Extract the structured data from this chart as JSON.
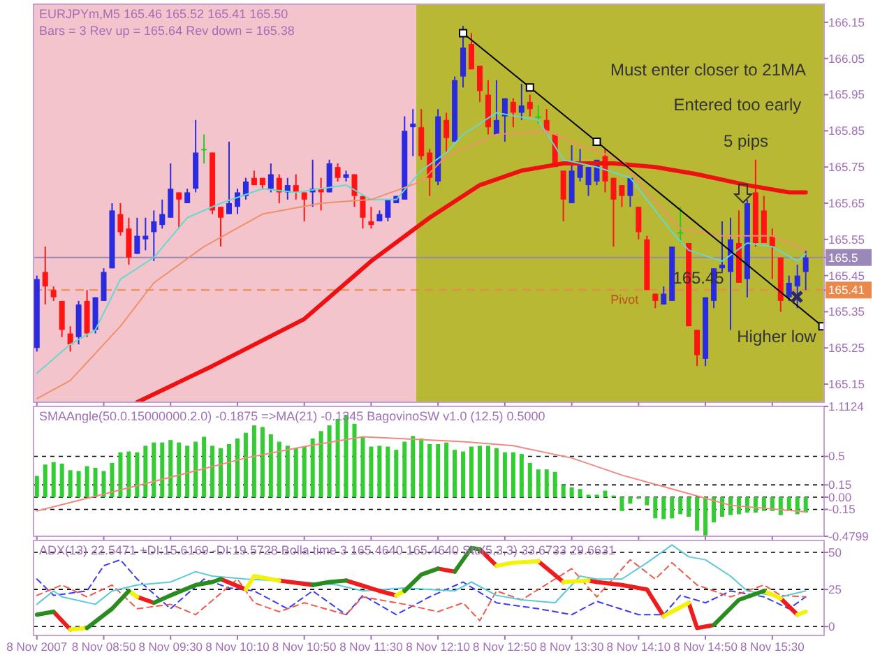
{
  "chart_data": [
    {
      "type": "candlestick",
      "title": "EURJPYm,M5  165.46 165.52 165.41 165.50",
      "subtitle": "Bars = 3 Rev up =  165.64 Rev down = 165.38",
      "xlim": [
        "2007-11-08T08:08",
        "2007-11-08T16:01"
      ],
      "ylim": [
        165.1,
        166.2
      ],
      "yticks": [
        165.15,
        165.25,
        165.35,
        165.41,
        165.45,
        165.5,
        165.55,
        165.65,
        165.75,
        165.85,
        165.95,
        166.05,
        166.15
      ],
      "tick_labels": "y",
      "grid": false,
      "xticks": [
        "2007-11-08T08:10",
        "2007-11-08T08:50",
        "2007-11-08T09:30",
        "2007-11-08T10:10",
        "2007-11-08T10:50",
        "2007-11-08T11:30",
        "2007-11-08T12:10",
        "2007-11-08T12:50",
        "2007-11-08T13:30",
        "2007-11-08T14:10",
        "2007-11-08T14:50",
        "2007-11-08T15:30"
      ],
      "bands": [
        {
          "axis": "x",
          "from": "2007-11-08T08:08",
          "to": "2007-11-08T11:57",
          "color": "#f4c4cc"
        },
        {
          "axis": "x",
          "from": "2007-11-08T11:57",
          "to": "2007-11-08T16:01",
          "color": "#b8b834"
        }
      ],
      "ref_lines": [
        {
          "axis": "y",
          "value": 165.5,
          "color": "#9a88b8",
          "line_style": "solid"
        },
        {
          "axis": "y",
          "value": 165.41,
          "label": "Pivot",
          "color": "#e8884a",
          "line_style": "dashed"
        }
      ],
      "annotations": [
        "Must enter closer to 21MA",
        "Entered too early",
        "5 pips",
        "165.45",
        "Higher low"
      ],
      "series": [
        {
          "x": [
            "2007-11-08T08:10",
            "2007-11-08T08:15",
            "2007-11-08T08:20",
            "2007-11-08T08:25",
            "2007-11-08T08:30",
            "2007-11-08T08:35",
            "2007-11-08T08:40",
            "2007-11-08T08:45",
            "2007-11-08T08:50",
            "2007-11-08T08:55",
            "2007-11-08T09:00",
            "2007-11-08T09:05",
            "2007-11-08T09:10",
            "2007-11-08T09:15",
            "2007-11-08T09:20",
            "2007-11-08T09:25",
            "2007-11-08T09:30",
            "2007-11-08T09:35",
            "2007-11-08T09:40",
            "2007-11-08T09:45",
            "2007-11-08T09:50",
            "2007-11-08T09:55",
            "2007-11-08T10:00",
            "2007-11-08T10:05",
            "2007-11-08T10:10",
            "2007-11-08T10:15",
            "2007-11-08T10:20",
            "2007-11-08T10:25",
            "2007-11-08T10:30",
            "2007-11-08T10:35",
            "2007-11-08T10:40",
            "2007-11-08T10:45",
            "2007-11-08T10:50",
            "2007-11-08T10:55",
            "2007-11-08T11:00",
            "2007-11-08T11:05",
            "2007-11-08T11:10",
            "2007-11-08T11:15",
            "2007-11-08T11:20",
            "2007-11-08T11:25",
            "2007-11-08T11:30",
            "2007-11-08T11:35",
            "2007-11-08T11:40",
            "2007-11-08T11:45",
            "2007-11-08T11:50",
            "2007-11-08T11:55",
            "2007-11-08T12:00",
            "2007-11-08T12:05",
            "2007-11-08T12:10",
            "2007-11-08T12:15",
            "2007-11-08T12:20",
            "2007-11-08T12:25",
            "2007-11-08T12:30",
            "2007-11-08T12:35",
            "2007-11-08T12:40",
            "2007-11-08T12:45",
            "2007-11-08T12:50",
            "2007-11-08T12:55",
            "2007-11-08T13:00",
            "2007-11-08T13:05",
            "2007-11-08T13:10",
            "2007-11-08T13:15",
            "2007-11-08T13:20",
            "2007-11-08T13:25",
            "2007-11-08T13:30",
            "2007-11-08T13:35",
            "2007-11-08T13:40",
            "2007-11-08T13:45",
            "2007-11-08T13:50",
            "2007-11-08T13:55",
            "2007-11-08T14:00",
            "2007-11-08T14:05",
            "2007-11-08T14:10",
            "2007-11-08T14:15",
            "2007-11-08T14:20",
            "2007-11-08T14:25",
            "2007-11-08T14:30",
            "2007-11-08T14:35",
            "2007-11-08T14:40",
            "2007-11-08T14:45",
            "2007-11-08T14:50",
            "2007-11-08T14:55",
            "2007-11-08T15:00",
            "2007-11-08T15:05",
            "2007-11-08T15:10",
            "2007-11-08T15:15",
            "2007-11-08T15:20",
            "2007-11-08T15:25",
            "2007-11-08T15:30",
            "2007-11-08T15:35",
            "2007-11-08T15:40",
            "2007-11-08T15:45",
            "2007-11-08T15:50"
          ],
          "ohlc": [
            [
              165.25,
              165.45,
              165.24,
              165.44
            ],
            [
              165.46,
              165.53,
              165.37,
              165.42
            ],
            [
              165.41,
              165.42,
              165.38,
              165.39
            ],
            [
              165.38,
              165.38,
              165.28,
              165.3
            ],
            [
              165.29,
              165.31,
              165.24,
              165.26
            ],
            [
              165.28,
              165.38,
              165.26,
              165.37
            ],
            [
              165.38,
              165.41,
              165.28,
              165.29
            ],
            [
              165.3,
              165.39,
              165.29,
              165.39
            ],
            [
              165.38,
              165.47,
              165.38,
              165.46
            ],
            [
              165.47,
              165.65,
              165.47,
              165.63
            ],
            [
              165.62,
              165.65,
              165.56,
              165.57
            ],
            [
              165.58,
              165.61,
              165.48,
              165.5
            ],
            [
              165.51,
              165.61,
              165.51,
              165.56
            ],
            [
              165.55,
              165.61,
              165.52,
              165.56
            ],
            [
              165.57,
              165.63,
              165.49,
              165.6
            ],
            [
              165.59,
              165.66,
              165.58,
              165.62
            ],
            [
              165.61,
              165.76,
              165.61,
              165.69
            ],
            [
              165.68,
              165.68,
              165.58,
              165.66
            ],
            [
              165.65,
              165.69,
              165.65,
              165.68
            ],
            [
              165.69,
              165.88,
              165.68,
              165.79
            ],
            [
              165.8,
              165.84,
              165.76,
              165.8
            ],
            [
              165.79,
              165.79,
              165.62,
              165.63
            ],
            [
              165.64,
              165.64,
              165.53,
              165.61
            ],
            [
              165.62,
              165.82,
              165.62,
              165.65
            ],
            [
              165.64,
              165.69,
              165.62,
              165.68
            ],
            [
              165.67,
              165.72,
              165.66,
              165.71
            ],
            [
              165.72,
              165.74,
              165.7,
              165.7
            ],
            [
              165.72,
              165.72,
              165.69,
              165.7
            ],
            [
              165.69,
              165.76,
              165.68,
              165.73
            ],
            [
              165.72,
              165.73,
              165.65,
              165.68
            ],
            [
              165.68,
              165.72,
              165.66,
              165.7
            ],
            [
              165.7,
              165.73,
              165.66,
              165.68
            ],
            [
              165.68,
              165.68,
              165.6,
              165.66
            ],
            [
              165.68,
              165.77,
              165.64,
              165.69
            ],
            [
              165.69,
              165.72,
              165.63,
              165.68
            ],
            [
              165.68,
              165.77,
              165.68,
              165.76
            ],
            [
              165.75,
              165.76,
              165.71,
              165.72
            ],
            [
              165.72,
              165.74,
              165.71,
              165.73
            ],
            [
              165.73,
              165.73,
              165.64,
              165.67
            ],
            [
              165.67,
              165.67,
              165.58,
              165.61
            ],
            [
              165.6,
              165.64,
              165.58,
              165.59
            ],
            [
              165.6,
              165.63,
              165.6,
              165.62
            ],
            [
              165.61,
              165.66,
              165.6,
              165.66
            ],
            [
              165.65,
              165.67,
              165.65,
              165.67
            ],
            [
              165.66,
              165.89,
              165.66,
              165.85
            ],
            [
              165.86,
              165.91,
              165.78,
              165.87
            ],
            [
              165.86,
              165.91,
              165.77,
              165.78
            ],
            [
              165.79,
              165.8,
              165.67,
              165.72
            ],
            [
              165.71,
              165.91,
              165.7,
              165.89
            ],
            [
              165.88,
              165.9,
              165.79,
              165.83
            ],
            [
              165.82,
              166.0,
              165.82,
              165.99
            ],
            [
              166.0,
              166.14,
              165.97,
              166.08
            ],
            [
              166.09,
              166.12,
              166.02,
              166.02
            ],
            [
              166.03,
              166.03,
              165.93,
              165.96
            ],
            [
              165.95,
              165.99,
              165.84,
              165.86
            ],
            [
              165.84,
              165.99,
              165.84,
              165.88
            ],
            [
              165.89,
              165.94,
              165.82,
              165.94
            ],
            [
              165.93,
              165.94,
              165.86,
              165.9
            ],
            [
              165.9,
              165.98,
              165.88,
              165.92
            ],
            [
              165.93,
              165.95,
              165.89,
              165.91
            ],
            [
              165.89,
              165.92,
              165.87,
              165.89
            ],
            [
              165.88,
              165.91,
              165.84,
              165.85
            ],
            [
              165.84,
              165.84,
              165.75,
              165.75
            ],
            [
              165.74,
              165.74,
              165.6,
              165.66
            ],
            [
              165.65,
              165.81,
              165.65,
              165.74
            ],
            [
              165.72,
              165.8,
              165.71,
              165.76
            ],
            [
              165.7,
              165.75,
              165.67,
              165.75
            ],
            [
              165.71,
              165.77,
              165.7,
              165.77
            ],
            [
              165.78,
              165.8,
              165.68,
              165.71
            ],
            [
              165.72,
              165.72,
              165.53,
              165.66
            ],
            [
              165.7,
              165.7,
              165.64,
              165.67
            ],
            [
              165.67,
              165.72,
              165.64,
              165.72
            ],
            [
              165.64,
              165.64,
              165.55,
              165.57
            ],
            [
              165.55,
              165.56,
              165.41,
              165.41
            ],
            [
              165.4,
              165.4,
              165.36,
              165.38
            ],
            [
              165.37,
              165.42,
              165.37,
              165.4
            ],
            [
              165.38,
              165.53,
              165.38,
              165.53
            ],
            [
              165.57,
              165.64,
              165.54,
              165.57
            ],
            [
              165.54,
              165.54,
              165.31,
              165.31
            ],
            [
              165.3,
              165.3,
              165.2,
              165.23
            ],
            [
              165.22,
              165.39,
              165.2,
              165.39
            ],
            [
              165.38,
              165.47,
              165.36,
              165.47
            ],
            [
              165.47,
              165.6,
              165.46,
              165.48
            ],
            [
              165.46,
              165.61,
              165.3,
              165.55
            ],
            [
              165.54,
              165.63,
              165.43,
              165.43
            ],
            [
              165.44,
              165.66,
              165.39,
              165.65
            ],
            [
              165.68,
              165.77,
              165.53,
              165.54
            ],
            [
              165.63,
              165.67,
              165.54,
              165.54
            ],
            [
              165.56,
              165.58,
              165.44,
              165.53
            ],
            [
              165.5,
              165.5,
              165.35,
              165.38
            ],
            [
              165.39,
              165.45,
              165.38,
              165.43
            ],
            [
              165.42,
              165.48,
              165.36,
              165.45
            ],
            [
              165.46,
              165.52,
              165.41,
              165.5
            ]
          ],
          "colors": [
            "#2a2ae0",
            "#ff1414",
            "#ff1414",
            "#ff1414",
            "#ff1414",
            "#2a2ae0",
            "#ff1414",
            "#2a2ae0",
            "#2a2ae0",
            "#2a2ae0",
            "#ff1414",
            "#ff1414",
            "#2a2ae0",
            "#2a2ae0",
            "#2a2ae0",
            "#2a2ae0",
            "#2a2ae0",
            "#ff1414",
            "#2a2ae0",
            "#2a2ae0",
            "#22cc22",
            "#ff1414",
            "#ff1414",
            "#2a2ae0",
            "#2a2ae0",
            "#2a2ae0",
            "#ff1414",
            "#ff1414",
            "#2a2ae0",
            "#ff1414",
            "#2a2ae0",
            "#ff1414",
            "#ff1414",
            "#2a2ae0",
            "#ff1414",
            "#2a2ae0",
            "#ff1414",
            "#2a2ae0",
            "#ff1414",
            "#ff1414",
            "#ff1414",
            "#2a2ae0",
            "#2a2ae0",
            "#2a2ae0",
            "#2a2ae0",
            "#2a2ae0",
            "#ff1414",
            "#ff1414",
            "#2a2ae0",
            "#ff1414",
            "#2a2ae0",
            "#2a2ae0",
            "#ff1414",
            "#ff1414",
            "#ff1414",
            "#2a2ae0",
            "#2a2ae0",
            "#ff1414",
            "#2a2ae0",
            "#ff1414",
            "#22cc22",
            "#ff1414",
            "#ff1414",
            "#ff1414",
            "#2a2ae0",
            "#2a2ae0",
            "#2a2ae0",
            "#2a2ae0",
            "#ff1414",
            "#ff1414",
            "#ff1414",
            "#2a2ae0",
            "#ff1414",
            "#ff1414",
            "#ff1414",
            "#2a2ae0",
            "#2a2ae0",
            "#22cc22",
            "#ff1414",
            "#ff1414",
            "#2a2ae0",
            "#2a2ae0",
            "#2a2ae0",
            "#2a2ae0",
            "#ff1414",
            "#2a2ae0",
            "#ff1414",
            "#ff1414",
            "#ff1414",
            "#ff1414",
            "#2a2ae0",
            "#2a2ae0",
            "#2a2ae0"
          ]
        },
        {
          "type": "line",
          "color": "#ee1111",
          "x": [
            "2007-11-08T09:10",
            "2007-11-08T09:55",
            "2007-11-08T10:50",
            "2007-11-08T11:30",
            "2007-11-08T12:05",
            "2007-11-08T12:35",
            "2007-11-08T13:00",
            "2007-11-08T13:25",
            "2007-11-08T13:55",
            "2007-11-08T14:20",
            "2007-11-08T14:45",
            "2007-11-08T15:15",
            "2007-11-08T15:40",
            "2007-11-08T15:50"
          ],
          "values": [
            165.1,
            165.2,
            165.33,
            165.49,
            165.61,
            165.7,
            165.74,
            165.76,
            165.76,
            165.75,
            165.73,
            165.7,
            165.68,
            165.68
          ]
        },
        {
          "type": "line",
          "color": "#66d8d0",
          "x": [
            "2007-11-08T08:10",
            "2007-11-08T08:30",
            "2007-11-08T08:45",
            "2007-11-08T09:00",
            "2007-11-08T09:20",
            "2007-11-08T09:40",
            "2007-11-08T10:00",
            "2007-11-08T10:25",
            "2007-11-08T10:45",
            "2007-11-08T11:15",
            "2007-11-08T11:30",
            "2007-11-08T11:45",
            "2007-11-08T12:00",
            "2007-11-08T12:15",
            "2007-11-08T12:25",
            "2007-11-08T12:45",
            "2007-11-08T13:10",
            "2007-11-08T13:25",
            "2007-11-08T13:45",
            "2007-11-08T14:05",
            "2007-11-08T14:20",
            "2007-11-08T14:30",
            "2007-11-08T14:40",
            "2007-11-08T15:00",
            "2007-11-08T15:15",
            "2007-11-08T15:30",
            "2007-11-08T15:45",
            "2007-11-08T15:50"
          ],
          "values": [
            165.18,
            165.26,
            165.3,
            165.44,
            165.5,
            165.61,
            165.65,
            165.69,
            165.68,
            165.7,
            165.66,
            165.66,
            165.74,
            165.79,
            165.84,
            165.9,
            165.88,
            165.77,
            165.75,
            165.72,
            165.63,
            165.57,
            165.52,
            165.49,
            165.54,
            165.53,
            165.49,
            165.51
          ]
        },
        {
          "type": "line",
          "color": "#f0906a",
          "x": [
            "2007-11-08T08:10",
            "2007-11-08T08:30",
            "2007-11-08T09:00",
            "2007-11-08T09:20",
            "2007-11-08T09:50",
            "2007-11-08T10:25",
            "2007-11-08T11:00",
            "2007-11-08T11:30",
            "2007-11-08T12:00",
            "2007-11-08T12:15",
            "2007-11-08T12:45",
            "2007-11-08T13:15",
            "2007-11-08T13:35",
            "2007-11-08T14:00",
            "2007-11-08T14:15",
            "2007-11-08T14:35",
            "2007-11-08T15:00",
            "2007-11-08T15:30",
            "2007-11-08T15:50"
          ],
          "values": [
            165.11,
            165.16,
            165.31,
            165.43,
            165.53,
            165.62,
            165.65,
            165.66,
            165.71,
            165.78,
            165.84,
            165.85,
            165.81,
            165.77,
            165.68,
            165.58,
            165.56,
            165.56,
            165.52
          ]
        },
        {
          "type": "line",
          "color": "#000000",
          "marker": "square",
          "x": [
            "2007-11-08T12:25",
            "2007-11-08T13:05",
            "2007-11-08T13:45",
            "2007-11-08T16:00"
          ],
          "values": [
            166.12,
            165.97,
            165.82,
            165.31
          ]
        }
      ]
    },
    {
      "type": "bar",
      "title": "SMAAngle(50.0.15000000.2.0) -0.1875   =>MA(21) -0.1345   BagovinoSW v1.0 (12.5) 0.5000",
      "xlim": [
        "2007-11-08T08:08",
        "2007-11-08T16:01"
      ],
      "ylim": [
        -0.4799,
        1.1124
      ],
      "yticks": [
        1.1124,
        0.5,
        0.15,
        {
          "value": 0,
          "label": "0.00"
        },
        -0.15,
        -0.4799
      ],
      "tick_labels": "y",
      "grid": "y",
      "xticks": [
        "2007-11-08T08:10",
        "2007-11-08T08:50",
        "2007-11-08T09:30",
        "2007-11-08T10:10",
        "2007-11-08T10:50",
        "2007-11-08T11:30",
        "2007-11-08T12:10",
        "2007-11-08T12:50",
        "2007-11-08T13:30",
        "2007-11-08T14:10",
        "2007-11-08T14:50",
        "2007-11-08T15:30"
      ],
      "series": [
        {
          "color": "#33cc33",
          "x": [
            "2007-11-08T08:10",
            "2007-11-08T08:15",
            "2007-11-08T08:20",
            "2007-11-08T08:25",
            "2007-11-08T08:30",
            "2007-11-08T08:35",
            "2007-11-08T08:40",
            "2007-11-08T08:45",
            "2007-11-08T08:50",
            "2007-11-08T08:55",
            "2007-11-08T09:00",
            "2007-11-08T09:05",
            "2007-11-08T09:10",
            "2007-11-08T09:15",
            "2007-11-08T09:20",
            "2007-11-08T09:25",
            "2007-11-08T09:30",
            "2007-11-08T09:35",
            "2007-11-08T09:40",
            "2007-11-08T09:45",
            "2007-11-08T09:50",
            "2007-11-08T09:55",
            "2007-11-08T10:00",
            "2007-11-08T10:05",
            "2007-11-08T10:10",
            "2007-11-08T10:15",
            "2007-11-08T10:20",
            "2007-11-08T10:25",
            "2007-11-08T10:30",
            "2007-11-08T10:35",
            "2007-11-08T10:40",
            "2007-11-08T10:45",
            "2007-11-08T10:50",
            "2007-11-08T10:55",
            "2007-11-08T11:00",
            "2007-11-08T11:05",
            "2007-11-08T11:10",
            "2007-11-08T11:15",
            "2007-11-08T11:20",
            "2007-11-08T11:25",
            "2007-11-08T11:30",
            "2007-11-08T11:35",
            "2007-11-08T11:40",
            "2007-11-08T11:45",
            "2007-11-08T11:50",
            "2007-11-08T11:55",
            "2007-11-08T12:00",
            "2007-11-08T12:05",
            "2007-11-08T12:10",
            "2007-11-08T12:15",
            "2007-11-08T12:20",
            "2007-11-08T12:25",
            "2007-11-08T12:30",
            "2007-11-08T12:35",
            "2007-11-08T12:40",
            "2007-11-08T12:45",
            "2007-11-08T12:50",
            "2007-11-08T12:55",
            "2007-11-08T13:00",
            "2007-11-08T13:05",
            "2007-11-08T13:10",
            "2007-11-08T13:15",
            "2007-11-08T13:20",
            "2007-11-08T13:25",
            "2007-11-08T13:30",
            "2007-11-08T13:35",
            "2007-11-08T13:40",
            "2007-11-08T13:45",
            "2007-11-08T13:50",
            "2007-11-08T13:55",
            "2007-11-08T14:00",
            "2007-11-08T14:05",
            "2007-11-08T14:10",
            "2007-11-08T14:15",
            "2007-11-08T14:20",
            "2007-11-08T14:25",
            "2007-11-08T14:30",
            "2007-11-08T14:35",
            "2007-11-08T14:40",
            "2007-11-08T14:45",
            "2007-11-08T14:50",
            "2007-11-08T14:55",
            "2007-11-08T15:00",
            "2007-11-08T15:05",
            "2007-11-08T15:10",
            "2007-11-08T15:15",
            "2007-11-08T15:20",
            "2007-11-08T15:25",
            "2007-11-08T15:30",
            "2007-11-08T15:35",
            "2007-11-08T15:40",
            "2007-11-08T15:45",
            "2007-11-08T15:50"
          ],
          "values": [
            0.26,
            0.4,
            0.43,
            0.41,
            0.33,
            0.32,
            0.38,
            0.36,
            0.32,
            0.42,
            0.55,
            0.56,
            0.55,
            0.63,
            0.67,
            0.67,
            0.7,
            0.67,
            0.63,
            0.68,
            0.74,
            0.63,
            0.6,
            0.65,
            0.72,
            0.79,
            0.88,
            0.86,
            0.77,
            0.68,
            0.63,
            0.6,
            0.62,
            0.72,
            0.81,
            0.88,
            0.96,
            1.01,
            0.9,
            0.74,
            0.62,
            0.63,
            0.62,
            0.58,
            0.68,
            0.75,
            0.72,
            0.65,
            0.65,
            0.67,
            0.58,
            0.56,
            0.62,
            0.63,
            0.63,
            0.6,
            0.55,
            0.55,
            0.53,
            0.42,
            0.34,
            0.34,
            0.31,
            0.15,
            0.12,
            0.1,
            0.03,
            0.03,
            0.08,
            0.02,
            -0.17,
            -0.08,
            -0.02,
            -0.1,
            -0.26,
            -0.27,
            -0.26,
            -0.21,
            -0.24,
            -0.41,
            -0.47,
            -0.31,
            -0.24,
            -0.22,
            -0.21,
            -0.19,
            -0.19,
            -0.17,
            -0.17,
            -0.22,
            -0.17,
            -0.21,
            -0.19
          ]
        },
        {
          "type": "line",
          "color": "#f08a80",
          "x": [
            "2007-11-08T08:10",
            "2007-11-08T09:10",
            "2007-11-08T10:15",
            "2007-11-08T10:50",
            "2007-11-08T11:25",
            "2007-11-08T12:25",
            "2007-11-08T12:55",
            "2007-11-08T13:30",
            "2007-11-08T14:00",
            "2007-11-08T14:30",
            "2007-11-08T15:05",
            "2007-11-08T15:50"
          ],
          "values": [
            -0.17,
            0.14,
            0.48,
            0.62,
            0.74,
            0.68,
            0.63,
            0.48,
            0.27,
            0.1,
            -0.1,
            -0.18
          ]
        }
      ]
    },
    {
      "type": "line",
      "title": "ADX(13) 22.5471  +DI:15.6169  -DI:19.5728  Bolla time 3 165.4640 165.4640  Sto(5,3,3) 33.6733  29.6631",
      "xlim": [
        "2007-11-08T08:08",
        "2007-11-08T16:01"
      ],
      "ylim": [
        -6,
        58
      ],
      "yticks": [
        0,
        25,
        50
      ],
      "grid": "y",
      "xticks": [
        {
          "value": "2007-11-08T08:10",
          "label": "8 Nov 2007"
        },
        {
          "value": "2007-11-08T08:50",
          "label": "8 Nov 08:50"
        },
        {
          "value": "2007-11-08T09:30",
          "label": "8 Nov 09:30"
        },
        {
          "value": "2007-11-08T10:10",
          "label": "8 Nov 10:10"
        },
        {
          "value": "2007-11-08T10:50",
          "label": "8 Nov 10:50"
        },
        {
          "value": "2007-11-08T11:30",
          "label": "8 Nov 11:30"
        },
        {
          "value": "2007-11-08T12:10",
          "label": "8 Nov 12:10"
        },
        {
          "value": "2007-11-08T12:50",
          "label": "8 Nov 12:50"
        },
        {
          "value": "2007-11-08T13:30",
          "label": "8 Nov 13:30"
        },
        {
          "value": "2007-11-08T14:10",
          "label": "8 Nov 14:10"
        },
        {
          "value": "2007-11-08T14:50",
          "label": "8 Nov 14:50"
        },
        {
          "value": "2007-11-08T15:30",
          "label": "8 Nov 15:30"
        }
      ],
      "series": [
        {
          "line_style": "dashed",
          "color": "#3c3cf0",
          "x": [
            "2007-11-08T08:10",
            "2007-11-08T08:20",
            "2007-11-08T08:40",
            "2007-11-08T08:50",
            "2007-11-08T09:00",
            "2007-11-08T09:10",
            "2007-11-08T09:30",
            "2007-11-08T09:50",
            "2007-11-08T10:05",
            "2007-11-08T10:20",
            "2007-11-08T10:40",
            "2007-11-08T10:55",
            "2007-11-08T11:15",
            "2007-11-08T11:25",
            "2007-11-08T11:45",
            "2007-11-08T12:05",
            "2007-11-08T12:25",
            "2007-11-08T12:45",
            "2007-11-08T13:10",
            "2007-11-08T13:30",
            "2007-11-08T13:45",
            "2007-11-08T14:10",
            "2007-11-08T14:25",
            "2007-11-08T14:35",
            "2007-11-08T14:50",
            "2007-11-08T15:05",
            "2007-11-08T15:25",
            "2007-11-08T15:40",
            "2007-11-08T15:50"
          ],
          "values": [
            32,
            21,
            24,
            41,
            45,
            32,
            12,
            32,
            26,
            24,
            12,
            24,
            8,
            21,
            8,
            20,
            30,
            16,
            12,
            8,
            17,
            8,
            8,
            21,
            16,
            24,
            20,
            12,
            20
          ]
        },
        {
          "line_style": "dashed",
          "color": "#f05a4a",
          "x": [
            "2007-11-08T08:10",
            "2007-11-08T08:25",
            "2007-11-08T08:40",
            "2007-11-08T08:55",
            "2007-11-08T09:10",
            "2007-11-08T09:30",
            "2007-11-08T09:45",
            "2007-11-08T10:10",
            "2007-11-08T10:20",
            "2007-11-08T10:35",
            "2007-11-08T10:50",
            "2007-11-08T11:15",
            "2007-11-08T11:25",
            "2007-11-08T11:50",
            "2007-11-08T12:10",
            "2007-11-08T12:25",
            "2007-11-08T12:35",
            "2007-11-08T12:45",
            "2007-11-08T13:00",
            "2007-11-08T13:30",
            "2007-11-08T13:45",
            "2007-11-08T14:05",
            "2007-11-08T14:20",
            "2007-11-08T14:30",
            "2007-11-08T14:45",
            "2007-11-08T15:05",
            "2007-11-08T15:25",
            "2007-11-08T15:35",
            "2007-11-08T15:50"
          ],
          "values": [
            21,
            28,
            20,
            28,
            12,
            15,
            8,
            32,
            16,
            10,
            16,
            8,
            20,
            15,
            10,
            16,
            4,
            24,
            18,
            39,
            20,
            45,
            32,
            43,
            28,
            20,
            28,
            21,
            20
          ]
        },
        {
          "color": "#5ec8d8",
          "x": [
            "2007-11-08T08:10",
            "2007-11-08T08:20",
            "2007-11-08T08:25",
            "2007-11-08T08:45",
            "2007-11-08T08:55",
            "2007-11-08T09:10",
            "2007-11-08T09:30",
            "2007-11-08T09:45",
            "2007-11-08T09:55",
            "2007-11-08T10:15",
            "2007-11-08T10:50",
            "2007-11-08T11:10",
            "2007-11-08T11:25",
            "2007-11-08T11:50",
            "2007-11-08T12:20",
            "2007-11-08T12:30",
            "2007-11-08T12:45",
            "2007-11-08T13:00",
            "2007-11-08T13:20",
            "2007-11-08T13:35",
            "2007-11-08T13:45",
            "2007-11-08T14:00",
            "2007-11-08T14:15",
            "2007-11-08T14:30",
            "2007-11-08T14:40",
            "2007-11-08T14:50",
            "2007-11-08T15:05",
            "2007-11-08T15:15",
            "2007-11-08T15:35",
            "2007-11-08T15:50"
          ],
          "values": [
            15,
            24,
            20,
            15,
            24,
            28,
            30,
            37,
            34,
            32,
            30,
            28,
            24,
            26,
            24,
            30,
            21,
            18,
            16,
            34,
            32,
            32,
            43,
            55,
            47,
            45,
            34,
            24,
            20,
            24
          ]
        },
        {
          "color": "#ee1c1c",
          "x": [
            "2007-11-08T08:20",
            "2007-11-08T08:30",
            null,
            "2007-11-08T09:10",
            "2007-11-08T09:20",
            null,
            "2007-11-08T10:00",
            "2007-11-08T10:15",
            null,
            "2007-11-08T10:35",
            "2007-11-08T10:55",
            null,
            "2007-11-08T11:15",
            "2007-11-08T11:35",
            "2007-11-08T11:45",
            null,
            "2007-11-08T12:10",
            "2007-11-08T12:20",
            null,
            "2007-11-08T12:35",
            "2007-11-08T12:45",
            null,
            "2007-11-08T13:10",
            "2007-11-08T13:25",
            null,
            "2007-11-08T13:40",
            "2007-11-08T13:45",
            "2007-11-08T14:00",
            "2007-11-08T14:15",
            "2007-11-08T14:25",
            null,
            "2007-11-08T14:40",
            "2007-11-08T14:45",
            "2007-11-08T14:55",
            null,
            "2007-11-08T15:35",
            "2007-11-08T15:45"
          ],
          "values": [
            10,
            -2,
            null,
            20,
            16,
            null,
            32,
            25,
            null,
            31,
            28,
            null,
            31,
            24,
            21,
            null,
            39,
            37,
            null,
            52,
            41,
            null,
            44,
            30,
            null,
            31,
            30,
            28,
            25,
            7,
            null,
            16,
            -1,
            1,
            null,
            19,
            8
          ]
        },
        {
          "color": "#f2f20c",
          "x": [
            "2007-11-08T08:30",
            "2007-11-08T08:40",
            null,
            "2007-11-08T09:05",
            "2007-11-08T09:10",
            null,
            "2007-11-08T10:15",
            "2007-11-08T10:20",
            "2007-11-08T10:35",
            null,
            "2007-11-08T11:45",
            "2007-11-08T11:50",
            null,
            "2007-11-08T12:45",
            "2007-11-08T12:55",
            "2007-11-08T13:10",
            null,
            "2007-11-08T13:25",
            "2007-11-08T13:40",
            null,
            "2007-11-08T14:25",
            "2007-11-08T14:40",
            null,
            "2007-11-08T15:25",
            "2007-11-08T15:35",
            null,
            "2007-11-08T15:45",
            "2007-11-08T15:50"
          ],
          "values": [
            -2,
            -1,
            null,
            24,
            20,
            null,
            25,
            34,
            31,
            null,
            21,
            24,
            null,
            41,
            43,
            44,
            null,
            30,
            31,
            null,
            7,
            16,
            null,
            24,
            19,
            null,
            8,
            10
          ]
        },
        {
          "color": "#2a8c1e",
          "x": [
            "2007-11-08T08:10",
            "2007-11-08T08:20",
            null,
            "2007-11-08T08:40",
            "2007-11-08T08:55",
            "2007-11-08T09:05",
            null,
            "2007-11-08T09:20",
            "2007-11-08T09:30",
            "2007-11-08T09:45",
            "2007-11-08T09:55",
            "2007-11-08T10:00",
            null,
            "2007-11-08T10:55",
            "2007-11-08T11:05",
            "2007-11-08T11:15",
            null,
            "2007-11-08T11:50",
            "2007-11-08T12:00",
            "2007-11-08T12:10",
            null,
            "2007-11-08T12:20",
            "2007-11-08T12:30",
            "2007-11-08T12:35",
            null,
            "2007-11-08T14:55",
            "2007-11-08T15:10",
            "2007-11-08T15:25"
          ],
          "values": [
            8,
            10,
            null,
            -1,
            12,
            24,
            null,
            16,
            21,
            28,
            30,
            32,
            null,
            28,
            30,
            31,
            null,
            24,
            35,
            39,
            null,
            37,
            53,
            52,
            null,
            1,
            18,
            24
          ]
        }
      ]
    }
  ]
}
